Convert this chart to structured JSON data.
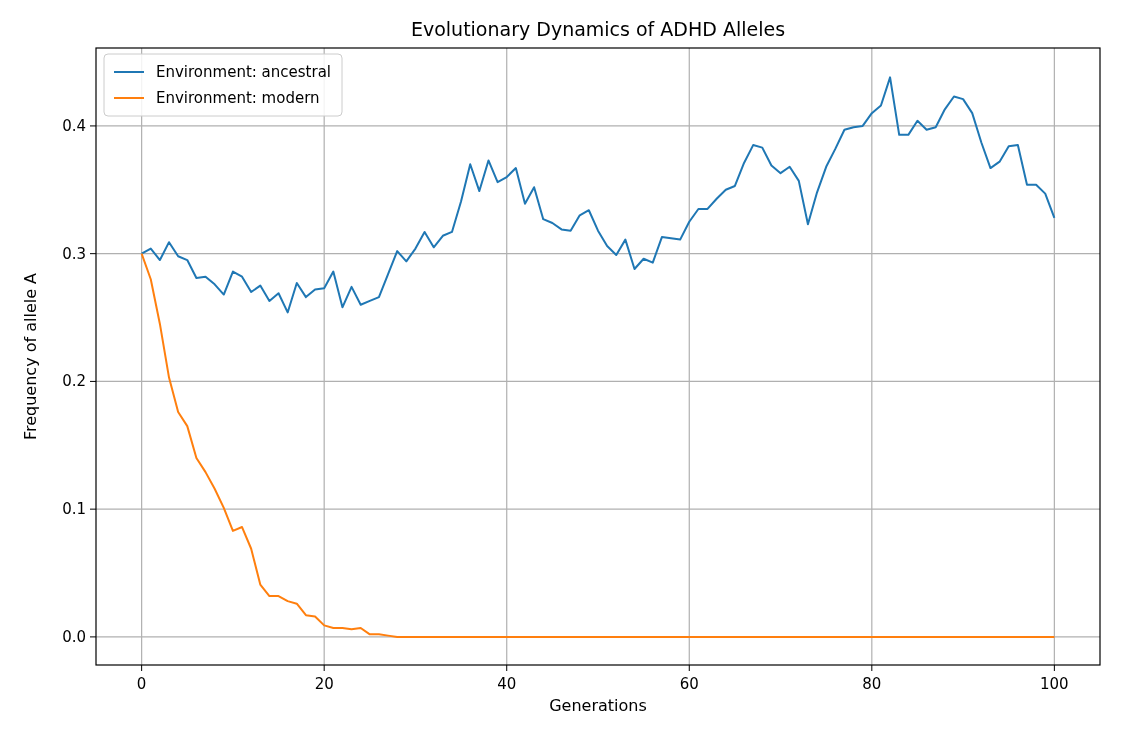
{
  "chart_data": {
    "type": "line",
    "title": "Evolutionary Dynamics of ADHD Alleles",
    "xlabel": "Generations",
    "ylabel": "Frequency of allele A",
    "x": [
      0,
      1,
      2,
      3,
      4,
      5,
      6,
      7,
      8,
      9,
      10,
      11,
      12,
      13,
      14,
      15,
      16,
      17,
      18,
      19,
      20,
      21,
      22,
      23,
      24,
      25,
      26,
      27,
      28,
      29,
      30,
      31,
      32,
      33,
      34,
      35,
      36,
      37,
      38,
      39,
      40,
      41,
      42,
      43,
      44,
      45,
      46,
      47,
      48,
      49,
      50,
      51,
      52,
      53,
      54,
      55,
      56,
      57,
      58,
      59,
      60,
      61,
      62,
      63,
      64,
      65,
      66,
      67,
      68,
      69,
      70,
      71,
      72,
      73,
      74,
      75,
      76,
      77,
      78,
      79,
      80,
      81,
      82,
      83,
      84,
      85,
      86,
      87,
      88,
      89,
      90,
      91,
      92,
      93,
      94,
      95,
      96,
      97,
      98,
      99,
      100
    ],
    "series": [
      {
        "name": "Environment: ancestral",
        "color": "#1f77b4",
        "values": [
          0.3,
          0.304,
          0.295,
          0.309,
          0.298,
          0.295,
          0.281,
          0.282,
          0.276,
          0.268,
          0.286,
          0.282,
          0.27,
          0.275,
          0.263,
          0.269,
          0.254,
          0.277,
          0.266,
          0.272,
          0.273,
          0.286,
          0.258,
          0.274,
          0.26,
          0.263,
          0.266,
          0.284,
          0.302,
          0.294,
          0.304,
          0.317,
          0.305,
          0.314,
          0.317,
          0.341,
          0.37,
          0.349,
          0.373,
          0.356,
          0.36,
          0.367,
          0.339,
          0.352,
          0.327,
          0.324,
          0.319,
          0.318,
          0.33,
          0.334,
          0.318,
          0.306,
          0.299,
          0.311,
          0.288,
          0.296,
          0.293,
          0.313,
          0.312,
          0.311,
          0.325,
          0.335,
          0.335,
          0.343,
          0.35,
          0.353,
          0.371,
          0.385,
          0.383,
          0.369,
          0.363,
          0.368,
          0.357,
          0.323,
          0.348,
          0.368,
          0.382,
          0.397,
          0.399,
          0.4,
          0.41,
          0.416,
          0.438,
          0.393,
          0.393,
          0.404,
          0.397,
          0.399,
          0.413,
          0.423,
          0.421,
          0.41,
          0.387,
          0.367,
          0.372,
          0.384,
          0.385,
          0.354,
          0.354,
          0.347,
          0.328
        ]
      },
      {
        "name": "Environment: modern",
        "color": "#ff7f0e",
        "values": [
          0.3,
          0.28,
          0.245,
          0.203,
          0.176,
          0.165,
          0.14,
          0.129,
          0.116,
          0.101,
          0.083,
          0.086,
          0.069,
          0.041,
          0.032,
          0.032,
          0.028,
          0.026,
          0.017,
          0.016,
          0.009,
          0.007,
          0.007,
          0.006,
          0.007,
          0.002,
          0.002,
          0.001,
          0,
          0,
          0,
          0,
          0,
          0,
          0,
          0,
          0,
          0,
          0,
          0,
          0,
          0,
          0,
          0,
          0,
          0,
          0,
          0,
          0,
          0,
          0,
          0,
          0,
          0,
          0,
          0,
          0,
          0,
          0,
          0,
          0,
          0,
          0,
          0,
          0,
          0,
          0,
          0,
          0,
          0,
          0,
          0,
          0,
          0,
          0,
          0,
          0,
          0,
          0,
          0,
          0,
          0,
          0,
          0,
          0,
          0,
          0,
          0,
          0,
          0,
          0,
          0,
          0,
          0,
          0,
          0,
          0,
          0,
          0,
          0,
          0
        ]
      }
    ],
    "xlim": [
      -5,
      105
    ],
    "ylim": [
      -0.022,
      0.461
    ],
    "xticks": [
      0,
      20,
      40,
      60,
      80,
      100
    ],
    "yticks": [
      {
        "value": 0,
        "label": "0.0"
      },
      {
        "value": 0.1,
        "label": "0.1"
      },
      {
        "value": 0.2,
        "label": "0.2"
      },
      {
        "value": 0.3,
        "label": "0.3"
      },
      {
        "value": 0.4,
        "label": "0.4"
      }
    ],
    "grid": true,
    "legend": "top left",
    "line_style": "solid"
  }
}
